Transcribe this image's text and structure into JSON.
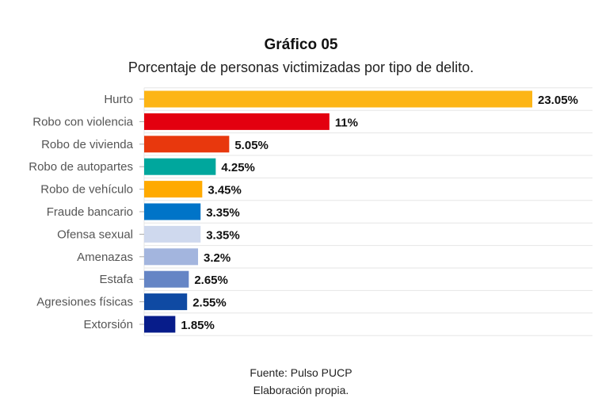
{
  "header": {
    "title": "Gráfico 05",
    "subtitle": "Porcentaje de personas victimizadas por tipo de delito."
  },
  "footer": {
    "source": "Fuente: Pulso PUCP",
    "credit": "Elaboración propia."
  },
  "chart_data": {
    "type": "bar",
    "orientation": "horizontal",
    "categories": [
      "Hurto",
      "Robo con violencia",
      "Robo de vivienda",
      "Robo de autopartes",
      "Robo de vehículo",
      "Fraude bancario",
      "Ofensa sexual",
      "Amenazas",
      "Estafa",
      "Agresiones físicas",
      "Extorsión"
    ],
    "values": [
      23.05,
      11,
      5.05,
      4.25,
      3.45,
      3.35,
      3.35,
      3.2,
      2.65,
      2.55,
      1.85
    ],
    "value_labels": [
      "23.05%",
      "11%",
      "5.05%",
      "4.25%",
      "3.45%",
      "3.35%",
      "3.35%",
      "3.2%",
      "2.65%",
      "2.55%",
      "1.85%"
    ],
    "colors": [
      "#FDB515",
      "#E3000F",
      "#E8380D",
      "#00A79D",
      "#FFAA00",
      "#0074C8",
      "#CFD9EE",
      "#A3B5DE",
      "#6585C5",
      "#0F4AA3",
      "#071C8A"
    ],
    "grid": true,
    "xlabel": "",
    "ylabel": ""
  }
}
